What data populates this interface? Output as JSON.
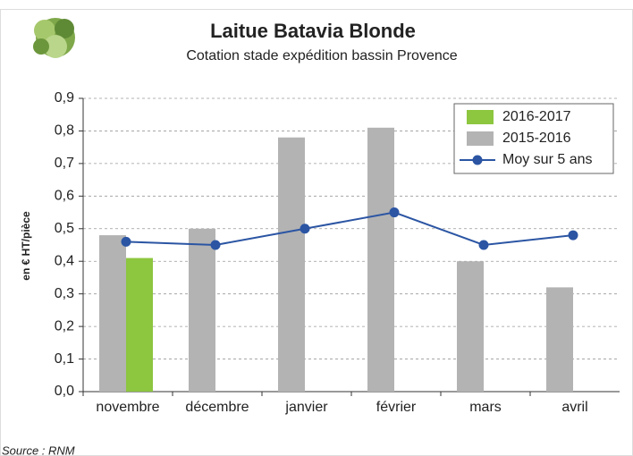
{
  "chart_data": {
    "type": "bar",
    "title": "Laitue Batavia Blonde",
    "subtitle": "Cotation stade expédition bassin Provence",
    "y_label": "en € HT/pièce",
    "source": "Source : RNM",
    "categories": [
      "novembre",
      "décembre",
      "janvier",
      "février",
      "mars",
      "avril"
    ],
    "series": [
      {
        "name": "2016-2017",
        "color": "#8dc63f",
        "type": "bar",
        "values": [
          0.41,
          null,
          null,
          null,
          null,
          null
        ]
      },
      {
        "name": "2015-2016",
        "color": "#b3b3b3",
        "type": "bar",
        "values": [
          0.48,
          0.5,
          0.78,
          0.81,
          0.4,
          0.32
        ]
      },
      {
        "name": "Moy sur 5 ans",
        "color": "#2b55a3",
        "type": "line",
        "values": [
          0.46,
          0.45,
          0.5,
          0.55,
          0.45,
          0.48
        ]
      }
    ],
    "ylim": [
      0,
      0.9
    ],
    "yticks": [
      {
        "value": 0,
        "label": "0,0"
      },
      {
        "value": 0.1,
        "label": "0,1"
      },
      {
        "value": 0.2,
        "label": "0,2"
      },
      {
        "value": 0.3,
        "label": "0,3"
      },
      {
        "value": 0.4,
        "label": "0,4"
      },
      {
        "value": 0.5,
        "label": "0,5"
      },
      {
        "value": 0.6,
        "label": "0,6"
      },
      {
        "value": 0.7,
        "label": "0,7"
      },
      {
        "value": 0.8,
        "label": "0,8"
      },
      {
        "value": 0.9,
        "label": "0,9"
      }
    ],
    "grid": true,
    "legend": "top-right"
  }
}
